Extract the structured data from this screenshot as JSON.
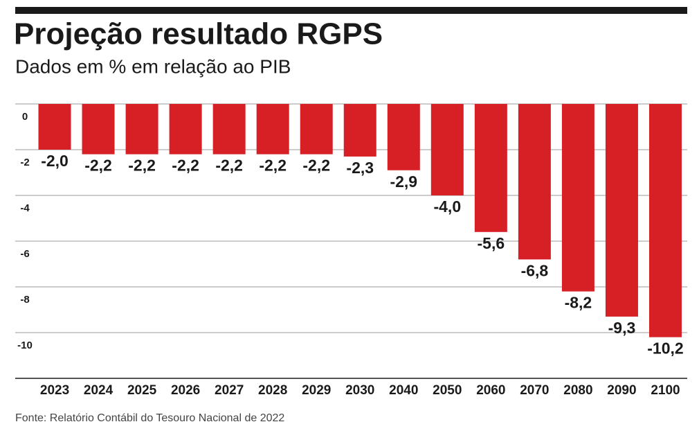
{
  "chart_data": {
    "type": "bar",
    "title": "Projeção resultado RGPS",
    "subtitle": "Dados em % em relação ao PIB",
    "source": "Fonte: Relatório Contábil do Tesouro Nacional de 2022",
    "categories": [
      "2023",
      "2024",
      "2025",
      "2026",
      "2027",
      "2028",
      "2029",
      "2030",
      "2040",
      "2050",
      "2060",
      "2070",
      "2080",
      "2090",
      "2100"
    ],
    "values": [
      -2.0,
      -2.2,
      -2.2,
      -2.2,
      -2.2,
      -2.2,
      -2.2,
      -2.3,
      -2.9,
      -4.0,
      -5.6,
      -6.8,
      -8.2,
      -9.3,
      -10.2
    ],
    "value_labels": [
      "-2,0",
      "-2,2",
      "-2,2",
      "-2,2",
      "-2,2",
      "-2,2",
      "-2,2",
      "-2,3",
      "-2,9",
      "-4,0",
      "-5,6",
      "-6,8",
      "-8,2",
      "-9,3",
      "-10,2"
    ],
    "color": "#d71f26",
    "ylim": [
      -12,
      0
    ],
    "yticks": [
      0,
      -2,
      -4,
      -6,
      -8,
      -10
    ],
    "grid": true
  }
}
